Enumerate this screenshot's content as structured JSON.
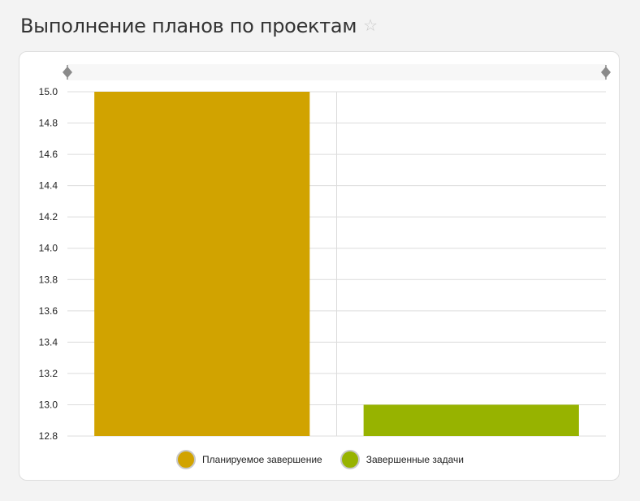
{
  "header": {
    "title": "Выполнение планов по проектам",
    "star_icon": "star-outline-icon"
  },
  "chart_data": {
    "type": "bar",
    "title": "",
    "xlabel": "",
    "ylabel": "",
    "ylim": [
      12.8,
      15.0
    ],
    "yticks": [
      "15.0",
      "14.8",
      "14.6",
      "14.4",
      "14.2",
      "14.0",
      "13.8",
      "13.6",
      "13.4",
      "13.2",
      "13.0",
      "12.8"
    ],
    "categories": [
      "Планируемое завершение",
      "Завершенные задачи"
    ],
    "values": [
      15.0,
      13.0
    ],
    "colors": [
      "#d1a300",
      "#97b300"
    ],
    "grid": true,
    "legend_position": "bottom",
    "legend": [
      {
        "label": "Планируемое завершение",
        "color": "#d1a300"
      },
      {
        "label": "Завершенные задачи",
        "color": "#97b300"
      }
    ]
  }
}
